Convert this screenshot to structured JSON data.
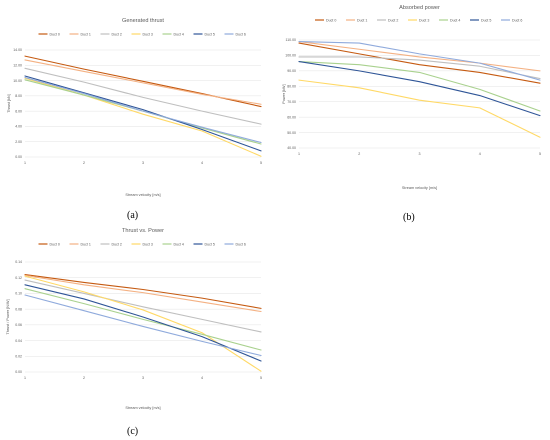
{
  "chart_data": [
    {
      "type": "line",
      "title": "Generated thrust",
      "xlabel": "Stream velocity [m/s]",
      "ylabel": "Thrust [kN]",
      "x": [
        1,
        2,
        3,
        4,
        5
      ],
      "xticks": [
        "1",
        "2",
        "3",
        "4",
        "5"
      ],
      "yticks": [
        "0.00",
        "2.00",
        "4.00",
        "6.00",
        "8.00",
        "10.00",
        "12.00",
        "14.00"
      ],
      "ylim": [
        0,
        14
      ],
      "legend": "top",
      "grid": true,
      "series": [
        {
          "name": "Duct 0",
          "color": "#c55a11",
          "values": [
            13.2,
            11.5,
            9.9,
            8.3,
            6.6
          ]
        },
        {
          "name": "Duct 1",
          "color": "#f4b183",
          "values": [
            12.7,
            11.2,
            9.7,
            8.2,
            6.9
          ]
        },
        {
          "name": "Duct 2",
          "color": "#bfbfbf",
          "values": [
            11.6,
            9.8,
            7.8,
            6.0,
            4.3
          ]
        },
        {
          "name": "Duct 3",
          "color": "#ffd966",
          "values": [
            10.3,
            8.1,
            5.6,
            3.4,
            0.1
          ]
        },
        {
          "name": "Duct 4",
          "color": "#a9d18e",
          "values": [
            10.1,
            8.1,
            6.0,
            3.8,
            1.7
          ]
        },
        {
          "name": "Duct 5",
          "color": "#2f5597",
          "values": [
            10.6,
            8.4,
            6.2,
            3.6,
            0.8
          ]
        },
        {
          "name": "Duct 6",
          "color": "#8faadc",
          "values": [
            10.4,
            8.3,
            6.0,
            3.9,
            1.9
          ]
        }
      ]
    },
    {
      "type": "line",
      "title": "Absorbed power",
      "xlabel": "Stream velocity [m/s]",
      "ylabel": "Power [kW]",
      "x": [
        1,
        2,
        3,
        4,
        5
      ],
      "xticks": [
        "1",
        "2",
        "3",
        "4",
        "5"
      ],
      "yticks": [
        "40.00",
        "50.00",
        "60.00",
        "70.00",
        "80.00",
        "90.00",
        "100.00",
        "110.00"
      ],
      "ylim": [
        40,
        110
      ],
      "legend": "top",
      "grid": true,
      "series": [
        {
          "name": "Duct 0",
          "color": "#c55a11",
          "values": [
            108,
            101,
            94,
            89,
            82
          ]
        },
        {
          "name": "Duct 1",
          "color": "#f4b183",
          "values": [
            109,
            104,
            99,
            95,
            90
          ]
        },
        {
          "name": "Duct 2",
          "color": "#bfbfbf",
          "values": [
            99,
            99,
            97,
            93,
            85
          ]
        },
        {
          "name": "Duct 3",
          "color": "#ffd966",
          "values": [
            84,
            79,
            71,
            66,
            47
          ]
        },
        {
          "name": "Duct 4",
          "color": "#a9d18e",
          "values": [
            96,
            94,
            89,
            78,
            64
          ]
        },
        {
          "name": "Duct 5",
          "color": "#2f5597",
          "values": [
            96,
            90,
            83,
            74,
            61
          ]
        },
        {
          "name": "Duct 6",
          "color": "#8faadc",
          "values": [
            109,
            108,
            101,
            95,
            84
          ]
        }
      ]
    },
    {
      "type": "line",
      "title": "Thrust vs. Power",
      "xlabel": "Stream velocity [m/s]",
      "ylabel": "Thrust / Power [N/W]",
      "x": [
        1,
        2,
        3,
        4,
        5
      ],
      "xticks": [
        "1",
        "2",
        "3",
        "4",
        "5"
      ],
      "yticks": [
        "0.00",
        "0.02",
        "0.04",
        "0.06",
        "0.08",
        "0.10",
        "0.12",
        "0.14"
      ],
      "ylim": [
        0,
        0.14
      ],
      "legend": "top",
      "grid": true,
      "series": [
        {
          "name": "Duct 0",
          "color": "#c55a11",
          "values": [
            0.124,
            0.114,
            0.105,
            0.094,
            0.081
          ]
        },
        {
          "name": "Duct 1",
          "color": "#f4b183",
          "values": [
            0.123,
            0.111,
            0.101,
            0.089,
            0.077
          ]
        },
        {
          "name": "Duct 2",
          "color": "#bfbfbf",
          "values": [
            0.117,
            0.1,
            0.083,
            0.067,
            0.051
          ]
        },
        {
          "name": "Duct 3",
          "color": "#ffd966",
          "values": [
            0.122,
            0.102,
            0.079,
            0.05,
            0.001
          ]
        },
        {
          "name": "Duct 4",
          "color": "#a9d18e",
          "values": [
            0.106,
            0.087,
            0.067,
            0.048,
            0.028
          ]
        },
        {
          "name": "Duct 5",
          "color": "#2f5597",
          "values": [
            0.111,
            0.093,
            0.07,
            0.045,
            0.014
          ]
        },
        {
          "name": "Duct 6",
          "color": "#8faadc",
          "values": [
            0.098,
            0.078,
            0.058,
            0.039,
            0.021
          ]
        }
      ]
    }
  ],
  "captions": [
    "(a)",
    "(b)",
    "(c)"
  ]
}
